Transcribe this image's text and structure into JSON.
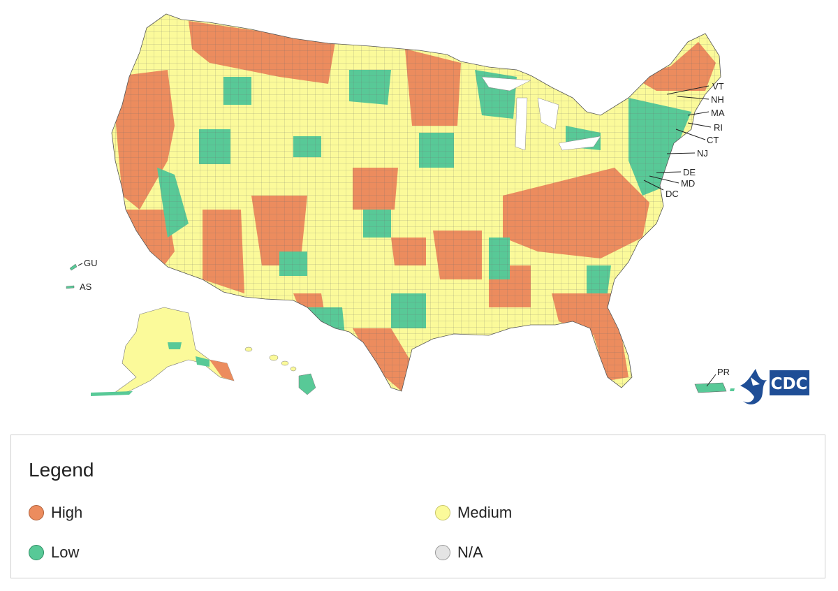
{
  "map": {
    "labels": {
      "vt": "VT",
      "nh": "NH",
      "ma": "MA",
      "ri": "RI",
      "ct": "CT",
      "nj": "NJ",
      "de": "DE",
      "md": "MD",
      "dc": "DC",
      "gu": "GU",
      "as": "AS",
      "pr": "PR"
    },
    "logo_text": "CDC",
    "colors": {
      "high": "#ec8c5e",
      "medium": "#fbfa9a",
      "low": "#58c997",
      "na": "#e4e4e4"
    }
  },
  "legend": {
    "title": "Legend",
    "items": [
      {
        "label": "High",
        "color": "#ec8c5e"
      },
      {
        "label": "Medium",
        "color": "#fbfa9a"
      },
      {
        "label": "Low",
        "color": "#58c997"
      },
      {
        "label": "N/A",
        "color": "#e4e4e4"
      }
    ]
  }
}
